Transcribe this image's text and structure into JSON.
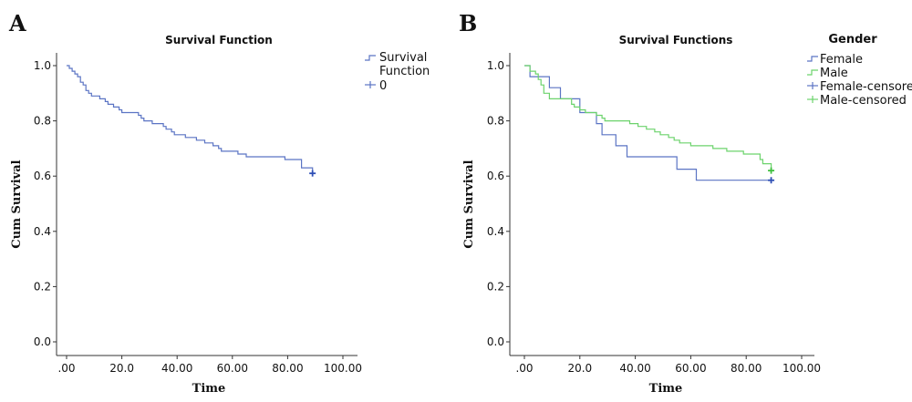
{
  "panels": [
    {
      "letter": "A"
    },
    {
      "letter": "B"
    }
  ],
  "colors": {
    "blue": "#5b74c4",
    "green": "#6cd36c",
    "blue_censor": "#2f4fb5",
    "green_censor": "#3fbf3f",
    "axis": "#333333"
  },
  "chart_data": [
    {
      "type": "line",
      "subtype": "kaplan-meier step",
      "title": "Survival Function",
      "xlabel": "Time",
      "ylabel": "Cum Survival",
      "xlim": [
        0,
        100
      ],
      "ylim": [
        0,
        1
      ],
      "xticks": [
        ".00",
        "20.0",
        "40.00",
        "60.00",
        "80.00",
        "100.00"
      ],
      "yticks": [
        "0.0",
        "0.2",
        "0.4",
        "0.6",
        "0.8",
        "1.0"
      ],
      "legend": {
        "title": "",
        "placement": "top-right",
        "entries": [
          "Survival Function",
          "0"
        ]
      },
      "series": [
        {
          "name": "Survival Function",
          "color": "#5b74c4",
          "points": [
            [
              0,
              1.0
            ],
            [
              1,
              0.99
            ],
            [
              2,
              0.98
            ],
            [
              3,
              0.97
            ],
            [
              4,
              0.96
            ],
            [
              5,
              0.94
            ],
            [
              6,
              0.93
            ],
            [
              7,
              0.91
            ],
            [
              8,
              0.9
            ],
            [
              9,
              0.89
            ],
            [
              12,
              0.88
            ],
            [
              14,
              0.87
            ],
            [
              15,
              0.86
            ],
            [
              17,
              0.85
            ],
            [
              19,
              0.84
            ],
            [
              20,
              0.83
            ],
            [
              26,
              0.82
            ],
            [
              27,
              0.81
            ],
            [
              28,
              0.8
            ],
            [
              31,
              0.79
            ],
            [
              35,
              0.78
            ],
            [
              36,
              0.77
            ],
            [
              38,
              0.76
            ],
            [
              39,
              0.75
            ],
            [
              43,
              0.74
            ],
            [
              47,
              0.73
            ],
            [
              50,
              0.72
            ],
            [
              53,
              0.71
            ],
            [
              55,
              0.7
            ],
            [
              56,
              0.69
            ],
            [
              62,
              0.68
            ],
            [
              65,
              0.67
            ],
            [
              79,
              0.66
            ],
            [
              85,
              0.63
            ],
            [
              89,
              0.61
            ]
          ],
          "censored": [
            [
              89,
              0.61
            ]
          ]
        }
      ]
    },
    {
      "type": "line",
      "subtype": "kaplan-meier step",
      "title": "Survival Functions",
      "xlabel": "Time",
      "ylabel": "Cum Survival",
      "xlim": [
        0,
        100
      ],
      "ylim": [
        0,
        1
      ],
      "xticks": [
        ".00",
        "20.0",
        "40.00",
        "60.00",
        "80.00",
        "100.00"
      ],
      "yticks": [
        "0.0",
        "0.2",
        "0.4",
        "0.6",
        "0.8",
        "1.0"
      ],
      "legend": {
        "title": "Gender",
        "placement": "top-right",
        "entries": [
          "Female",
          "Male",
          "Female-censored",
          "Male-censored"
        ]
      },
      "series": [
        {
          "name": "Female",
          "color": "#5b74c4",
          "points": [
            [
              0,
              1.0
            ],
            [
              2,
              0.96
            ],
            [
              9,
              0.92
            ],
            [
              13,
              0.88
            ],
            [
              20,
              0.83
            ],
            [
              26,
              0.79
            ],
            [
              28,
              0.75
            ],
            [
              33,
              0.71
            ],
            [
              37,
              0.67
            ],
            [
              55,
              0.625
            ],
            [
              62,
              0.585
            ],
            [
              89,
              0.585
            ]
          ],
          "censored": [
            [
              89,
              0.585
            ]
          ]
        },
        {
          "name": "Male",
          "color": "#6cd36c",
          "points": [
            [
              0,
              1.0
            ],
            [
              2,
              0.98
            ],
            [
              4,
              0.97
            ],
            [
              5,
              0.95
            ],
            [
              6,
              0.93
            ],
            [
              7,
              0.9
            ],
            [
              9,
              0.88
            ],
            [
              17,
              0.86
            ],
            [
              18,
              0.85
            ],
            [
              20,
              0.84
            ],
            [
              22,
              0.83
            ],
            [
              26,
              0.82
            ],
            [
              28,
              0.81
            ],
            [
              29,
              0.8
            ],
            [
              38,
              0.79
            ],
            [
              41,
              0.78
            ],
            [
              44,
              0.77
            ],
            [
              47,
              0.76
            ],
            [
              49,
              0.75
            ],
            [
              52,
              0.74
            ],
            [
              54,
              0.73
            ],
            [
              56,
              0.72
            ],
            [
              60,
              0.71
            ],
            [
              68,
              0.7
            ],
            [
              73,
              0.69
            ],
            [
              79,
              0.68
            ],
            [
              85,
              0.66
            ],
            [
              86,
              0.645
            ],
            [
              89,
              0.62
            ]
          ],
          "censored": [
            [
              89,
              0.62
            ]
          ]
        }
      ]
    }
  ]
}
